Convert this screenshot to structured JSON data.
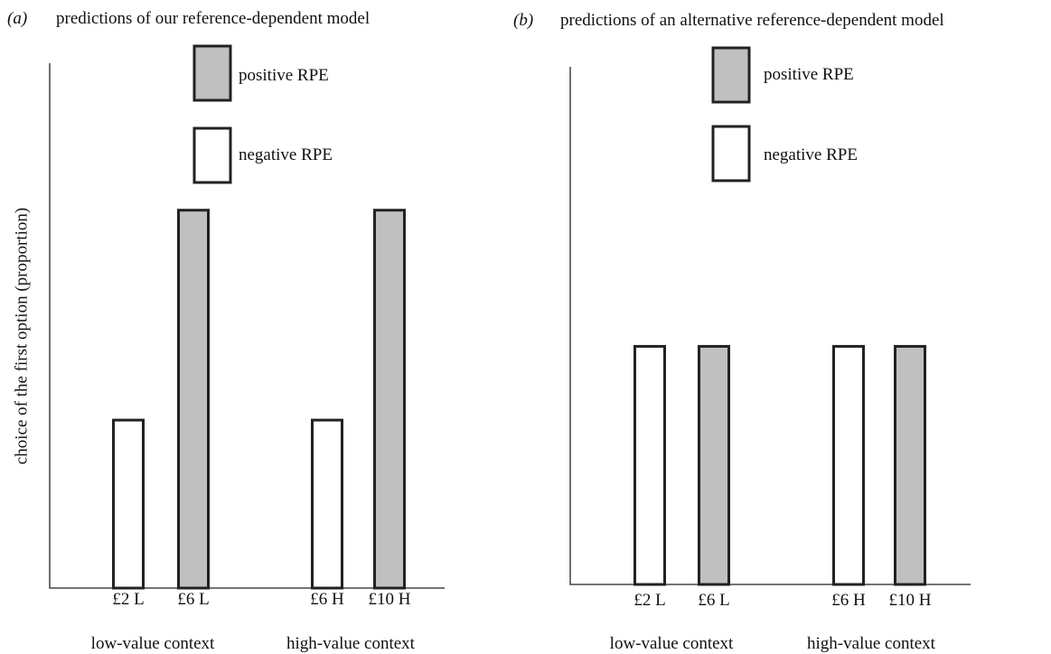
{
  "y_axis_label": "choice of the first option (proportion)",
  "legend": [
    {
      "label": "positive RPE",
      "color": "#c0c0c0"
    },
    {
      "label": "negative RPE",
      "color": "#ffffff"
    }
  ],
  "chart_data": [
    {
      "type": "bar",
      "panel_label": "(a)",
      "title": "predictions of our reference-dependent model",
      "ylabel": "choice of the first option (proportion)",
      "ylim": [
        0,
        1
      ],
      "y_ticks_shown": false,
      "legend_position": "top-center",
      "groups": [
        "low-value context",
        "high-value context"
      ],
      "categories": [
        "£2 L",
        "£6 L",
        "£6 H",
        "£10 H"
      ],
      "series_type": [
        "negative RPE",
        "positive RPE",
        "negative RPE",
        "positive RPE"
      ],
      "values": [
        0.32,
        0.72,
        0.32,
        0.72
      ]
    },
    {
      "type": "bar",
      "panel_label": "(b)",
      "title": "predictions of an alternative reference-dependent model",
      "ylabel": "",
      "ylim": [
        0,
        1
      ],
      "y_ticks_shown": false,
      "legend_position": "top-center",
      "groups": [
        "low-value context",
        "high-value context"
      ],
      "categories": [
        "£2 L",
        "£6 L",
        "£6 H",
        "£10 H"
      ],
      "series_type": [
        "negative RPE",
        "positive RPE",
        "negative RPE",
        "positive RPE"
      ],
      "values": [
        0.46,
        0.46,
        0.46,
        0.46
      ]
    }
  ]
}
